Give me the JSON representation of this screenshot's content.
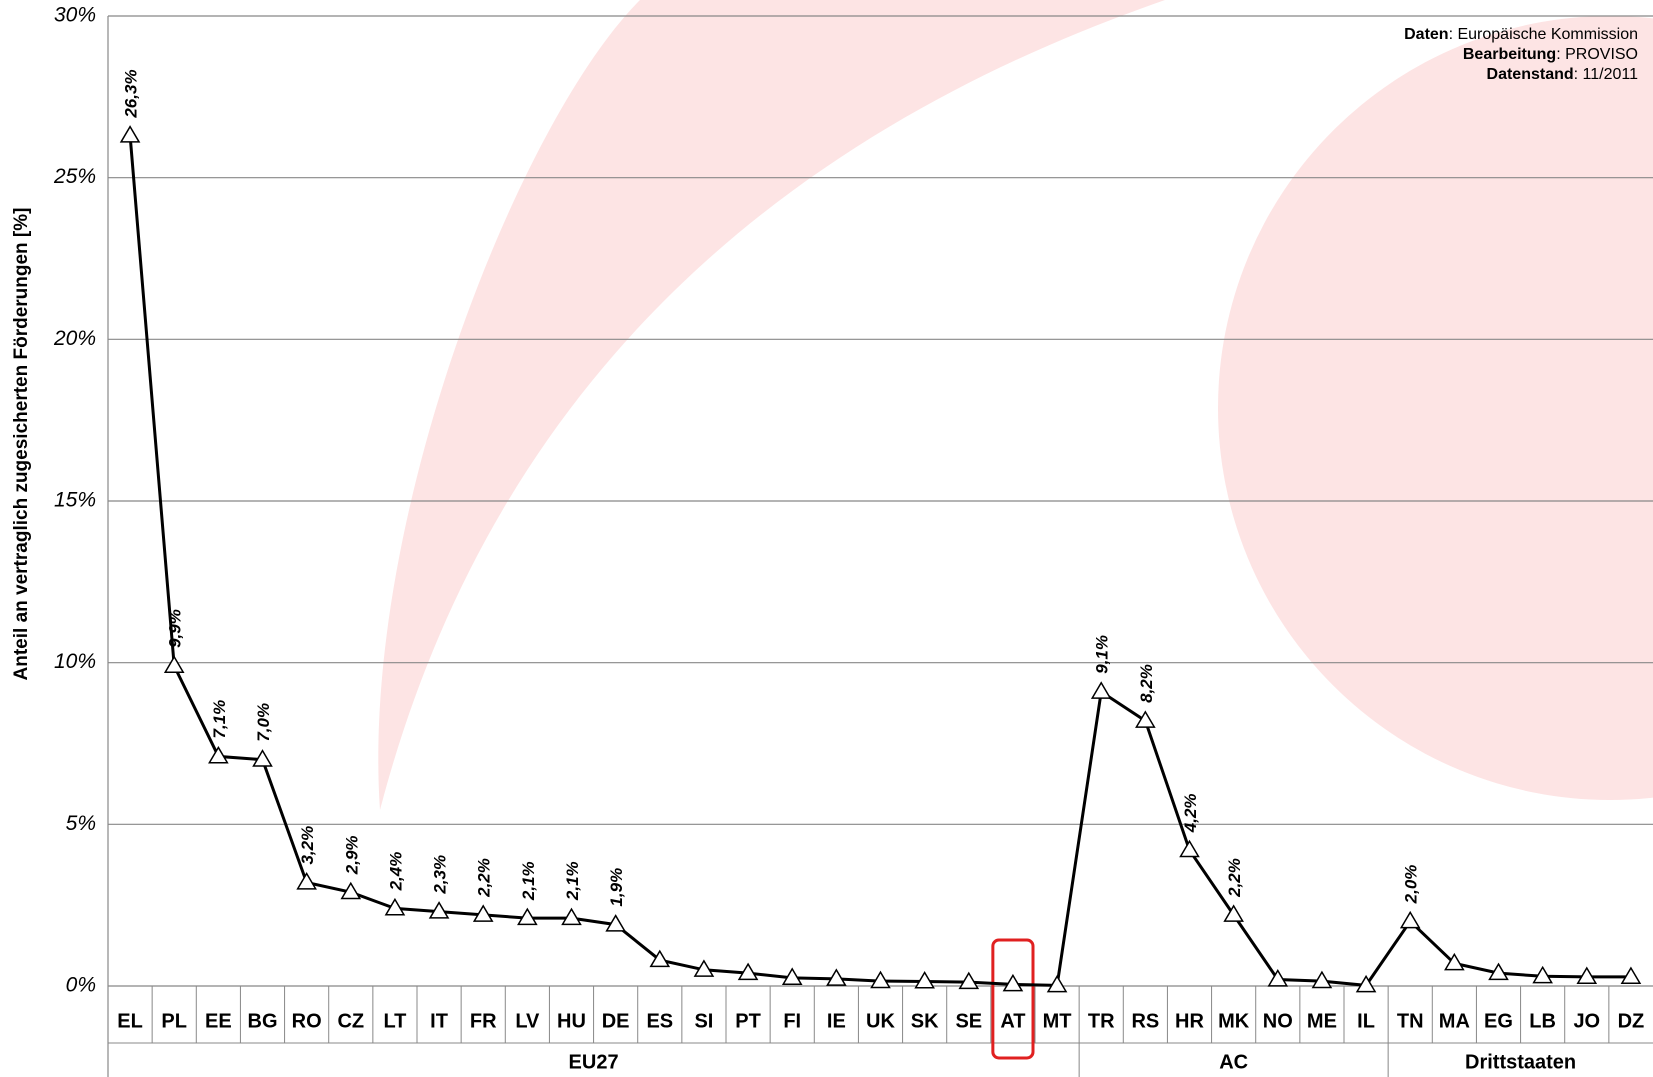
{
  "chart_data": {
    "type": "line",
    "y_label": "Anteil an vertraglich zugesicherten Förderungen [%]",
    "categories": [
      "EL",
      "PL",
      "EE",
      "BG",
      "RO",
      "CZ",
      "LT",
      "IT",
      "FR",
      "LV",
      "HU",
      "DE",
      "ES",
      "SI",
      "PT",
      "FI",
      "IE",
      "UK",
      "SK",
      "SE",
      "AT",
      "MT",
      "TR",
      "RS",
      "HR",
      "MK",
      "NO",
      "ME",
      "IL",
      "TN",
      "MA",
      "EG",
      "LB",
      "JO",
      "DZ"
    ],
    "groups": [
      "EU27",
      "EU27",
      "EU27",
      "EU27",
      "EU27",
      "EU27",
      "EU27",
      "EU27",
      "EU27",
      "EU27",
      "EU27",
      "EU27",
      "EU27",
      "EU27",
      "EU27",
      "EU27",
      "EU27",
      "EU27",
      "EU27",
      "EU27",
      "EU27",
      "EU27",
      "AC",
      "AC",
      "AC",
      "AC",
      "AC",
      "AC",
      "AC",
      "Drittstaaten",
      "Drittstaaten",
      "Drittstaaten",
      "Drittstaaten",
      "Drittstaaten",
      "Drittstaaten"
    ],
    "series": [
      {
        "color": "#000000",
        "values": [
          26.3,
          9.9,
          7.1,
          7.0,
          3.2,
          2.9,
          2.4,
          2.3,
          2.2,
          2.1,
          2.1,
          1.9,
          0.8,
          0.5,
          0.4,
          0.25,
          0.22,
          0.15,
          0.14,
          0.12,
          0.05,
          0.02,
          9.1,
          8.2,
          4.2,
          2.2,
          0.2,
          0.15,
          0.02,
          2.0,
          0.7,
          0.4,
          0.3,
          0.28,
          0.28
        ],
        "value_labels": [
          "26,3%",
          "9,9%",
          "7,1%",
          "7,0%",
          "3,2%",
          "2,9%",
          "2,4%",
          "2,3%",
          "2,2%",
          "2,1%",
          "2,1%",
          "1,9%",
          null,
          null,
          null,
          null,
          null,
          null,
          null,
          null,
          null,
          null,
          "9,1%",
          "8,2%",
          "4,2%",
          "2,2%",
          null,
          null,
          null,
          "2,0%",
          null,
          null,
          null,
          null,
          null
        ]
      }
    ],
    "ylim": [
      0,
      30
    ],
    "yticks": [
      {
        "value": 0,
        "label": "0%"
      },
      {
        "value": 5,
        "label": "5%"
      },
      {
        "value": 10,
        "label": "10%"
      },
      {
        "value": 15,
        "label": "15%"
      },
      {
        "value": 20,
        "label": "20%"
      },
      {
        "value": 25,
        "label": "25%"
      },
      {
        "value": 30,
        "label": "30%"
      }
    ],
    "grid": true,
    "highlight": "AT",
    "highlight_color": "#e02020",
    "source": [
      {
        "label": "Daten",
        "text": ": Europäische Kommission"
      },
      {
        "label": "Bearbeitung",
        "text": ": PROVISO"
      },
      {
        "label": "Datenstand",
        "text": ": 11/2011"
      }
    ]
  }
}
